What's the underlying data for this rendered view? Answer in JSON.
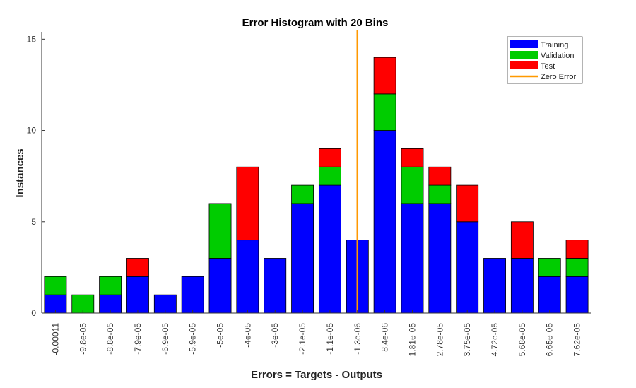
{
  "chart_data": {
    "type": "bar",
    "stacked": true,
    "title": "Error Histogram with 20 Bins",
    "xlabel": "Errors = Targets - Outputs",
    "ylabel": "Instances",
    "ylim": [
      0,
      15.4
    ],
    "yticks": [
      "0",
      "5",
      "10",
      "15"
    ],
    "grid": false,
    "legend_position": "top-right",
    "categories": [
      "-0.00011",
      "-9.8e-05",
      "-8.8e-05",
      "-7.9e-05",
      "-6.9e-05",
      "-5.9e-05",
      "-5e-05",
      "-4e-05",
      "-3e-05",
      "-2.1e-05",
      "-1.1e-05",
      "-1.3e-06",
      "8.4e-06",
      "1.81e-05",
      "2.78e-05",
      "3.75e-05",
      "4.72e-05",
      "5.68e-05",
      "6.65e-05",
      "7.62e-05"
    ],
    "series": [
      {
        "name": "Training",
        "color": "#0000ff",
        "values": [
          1,
          0,
          1,
          2,
          1,
          2,
          3,
          4,
          3,
          6,
          7,
          4,
          10,
          6,
          6,
          5,
          3,
          3,
          2,
          2
        ]
      },
      {
        "name": "Validation",
        "color": "#00cc00",
        "values": [
          1,
          1,
          1,
          0,
          0,
          0,
          3,
          0,
          0,
          1,
          1,
          0,
          2,
          2,
          1,
          0,
          0,
          0,
          1,
          1
        ]
      },
      {
        "name": "Test",
        "color": "#ff0000",
        "values": [
          0,
          0,
          0,
          1,
          0,
          0,
          0,
          4,
          0,
          0,
          1,
          0,
          2,
          1,
          1,
          2,
          0,
          2,
          0,
          1
        ]
      }
    ],
    "zero_error": {
      "name": "Zero Error",
      "color": "#ff9900",
      "position": "-1.3e-06"
    }
  }
}
